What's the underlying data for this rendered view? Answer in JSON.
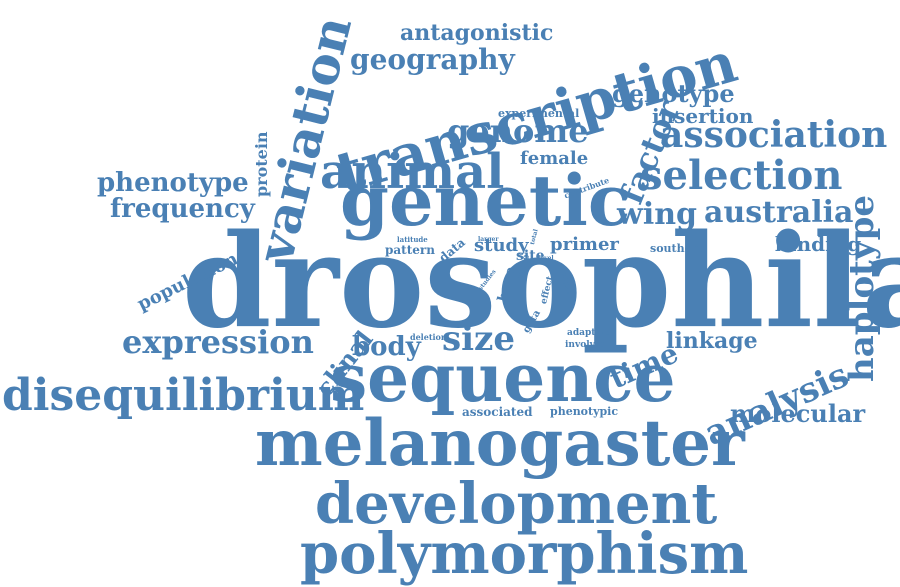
{
  "color": "#4a80b4",
  "words": [
    "drosophila",
    "genetic",
    "sequence",
    "melanogaster",
    "development",
    "polymorphism",
    "transcription",
    "variation",
    "animal",
    "disequilibrium",
    "expression",
    "haplotype",
    "association",
    "selection",
    "genome",
    "geography",
    "antagonistic",
    "genotype",
    "insertion",
    "factor",
    "phenotype",
    "frequency",
    "wing",
    "australia",
    "analysis",
    "molecular",
    "binding",
    "size",
    "body",
    "time",
    "linkage",
    "population",
    "clinal",
    "female",
    "protein",
    "study",
    "primer",
    "pattern",
    "data",
    "southern",
    "site",
    "associated",
    "phenotypic",
    "adaptive",
    "involved",
    "deletion",
    "experimental",
    "contribute",
    "larger",
    "base",
    "gata",
    "effect",
    "cline",
    "latitude",
    "studies",
    "higher",
    "total",
    "level"
  ]
}
